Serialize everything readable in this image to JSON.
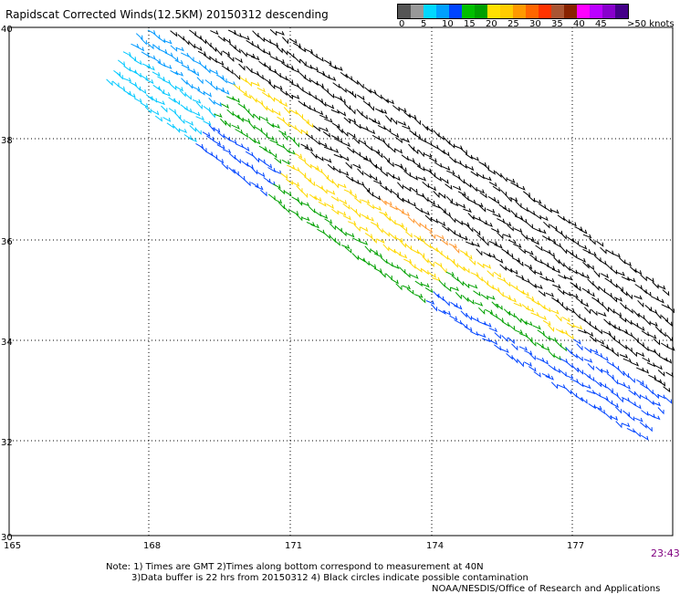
{
  "title": "Rapidscat Corrected Winds(12.5KM) 20150312 descending",
  "time": "23:43",
  "notes": [
    "Note: 1) Times are GMT 2)Times along bottom correspond to measurement at 40N",
    "3)Data buffer is 22 hrs from 20150312 4) Black circles indicate possible contamination",
    "NOAA/NESDIS/Office of Research and Applications"
  ],
  "legend": {
    "colors": [
      "#555555",
      "#999999",
      "#00d8ff",
      "#00a0ff",
      "#0044ff",
      "#00c000",
      "#00a000",
      "#ffe000",
      "#ffcc00",
      "#ff9900",
      "#ff6600",
      "#ff3300",
      "#aa5533",
      "#882200",
      "#ff00ff",
      "#bb00ff",
      "#8800cc",
      "#440088"
    ],
    "ticks": [
      "0",
      "5",
      "10",
      "15",
      "20",
      "25",
      "30",
      "35",
      "40",
      "45",
      ">50 knots"
    ]
  },
  "axes": {
    "lon_ticks": [
      "165",
      "168",
      "171",
      "174",
      "177"
    ],
    "lat_ticks": [
      "40",
      "38",
      "36",
      "34",
      "32",
      "30"
    ]
  }
}
